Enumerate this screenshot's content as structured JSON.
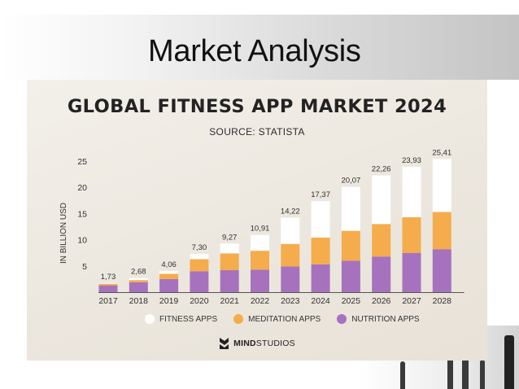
{
  "slide": {
    "title": "Market Analysis"
  },
  "infographic": {
    "title": "GLOBAL FITNESS APP MARKET 2024",
    "source": "SOURCE: STATISTA",
    "brand": {
      "bold": "MIND",
      "rest": "STUDIOS"
    }
  },
  "colors": {
    "fitness": "#ffffff",
    "meditation": "#f5ac4c",
    "nutrition": "#a672bd",
    "axis": "#555555",
    "text": "#2f2f2f"
  },
  "chart_data": {
    "type": "bar",
    "stacked": true,
    "title": "GLOBAL FITNESS APP MARKET 2024",
    "subtitle": "SOURCE: STATISTA",
    "ylabel": "IN BILLION USD",
    "xlabel": "",
    "ylim": [
      0,
      25
    ],
    "yticks": [
      5,
      10,
      15,
      20,
      25
    ],
    "grid": false,
    "legend_position": "bottom",
    "categories": [
      "2017",
      "2018",
      "2019",
      "2020",
      "2021",
      "2022",
      "2023",
      "2024",
      "2025",
      "2026",
      "2027",
      "2028"
    ],
    "totals_labels": [
      "1,73",
      "2,68",
      "4,06",
      "7,30",
      "9,27",
      "10,91",
      "14,22",
      "17,37",
      "20,07",
      "22,26",
      "23,93",
      "25,41"
    ],
    "totals": [
      1.73,
      2.68,
      4.06,
      7.3,
      9.27,
      10.91,
      14.22,
      17.37,
      20.07,
      22.26,
      23.93,
      25.41
    ],
    "series": [
      {
        "name": "NUTRITION APPS",
        "values": [
          1.3,
          1.9,
          2.5,
          4.0,
          4.2,
          4.3,
          4.9,
          5.3,
          6.0,
          6.8,
          7.5,
          8.2
        ]
      },
      {
        "name": "MEDITATION APPS",
        "values": [
          0.3,
          0.4,
          1.0,
          2.3,
          3.2,
          3.6,
          4.3,
          5.1,
          5.7,
          6.2,
          6.8,
          7.1
        ]
      },
      {
        "name": "FITNESS APPS",
        "values": [
          0.13,
          0.38,
          0.56,
          1.0,
          1.87,
          3.01,
          5.02,
          6.97,
          8.37,
          9.26,
          9.63,
          10.11
        ]
      }
    ]
  },
  "legend": [
    {
      "key": "fitness",
      "label": "FITNESS APPS"
    },
    {
      "key": "meditation",
      "label": "MEDITATION APPS"
    },
    {
      "key": "nutrition",
      "label": "NUTRITION APPS"
    }
  ]
}
